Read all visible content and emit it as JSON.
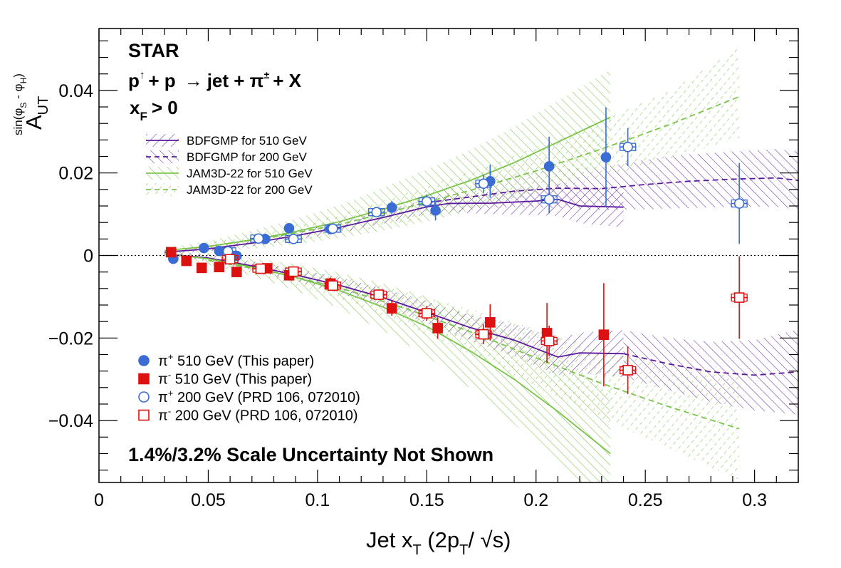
{
  "chart_data": {
    "type": "scatter",
    "title": "",
    "annotations": {
      "experiment": "STAR",
      "reaction": "p↑ + p → jet + π± + X",
      "reaction_parts": {
        "beam": "p",
        "up_arrow": "↑",
        "plus1": "+ p",
        "arrow": "→",
        "rest": "jet + π",
        "pm": "±",
        "tail": "+ X"
      },
      "kinematic_cut": "x_F > 0",
      "cut_parts": {
        "x": "x",
        "sub": "F",
        "rel": "> 0"
      },
      "scale_note": "1.4%/3.2% Scale Uncertainty Not Shown"
    },
    "xlabel": "Jet x_T (2p_T/√s)",
    "xlabel_parts": {
      "main": "Jet x",
      "sub1": "T",
      "mid": " (2p",
      "sub2": "T",
      "slash": "/ ",
      "sqrt": "√s",
      "close": ")"
    },
    "ylabel": "A_UT^sin(φ_S - φ_H)",
    "ylabel_parts": {
      "main": "A",
      "sub": "UT",
      "sup": "sin(φ",
      "sup_s": "S",
      "sup_mid": " - φ",
      "sup_h": "H",
      "sup_end": ")"
    },
    "xlim": [
      0,
      0.32
    ],
    "ylim": [
      -0.055,
      0.055
    ],
    "x_ticks": [
      {
        "value": 0,
        "label": "0"
      },
      {
        "value": 0.05,
        "label": "0.05"
      },
      {
        "value": 0.1,
        "label": "0.1"
      },
      {
        "value": 0.15,
        "label": "0.15"
      },
      {
        "value": 0.2,
        "label": "0.2"
      },
      {
        "value": 0.25,
        "label": "0.25"
      },
      {
        "value": 0.3,
        "label": "0.3"
      }
    ],
    "y_ticks": [
      {
        "value": -0.04,
        "label": "−0.04"
      },
      {
        "value": -0.02,
        "label": "−0.02"
      },
      {
        "value": 0,
        "label": "0"
      },
      {
        "value": 0.02,
        "label": "0.02"
      },
      {
        "value": 0.04,
        "label": "0.04"
      }
    ],
    "zero_line": true,
    "grid": false,
    "legend_top": {
      "placement": "upper-left",
      "entries": [
        {
          "label": "BDFGMP for 510 GeV",
          "color": "#5b1a9a",
          "style": "solid"
        },
        {
          "label": "BDFGMP for 200 GeV",
          "color": "#5b1a9a",
          "style": "dashed"
        },
        {
          "label": "JAM3D-22 for 510 GeV",
          "color": "#7cc44a",
          "style": "solid"
        },
        {
          "label": "JAM3D-22 for 200 GeV",
          "color": "#7cc44a",
          "style": "dashed"
        }
      ]
    },
    "legend_bottom": {
      "placement": "lower-left",
      "entries": [
        {
          "label": "π+ 510 GeV (This paper)",
          "parts": {
            "base": "π",
            "sup": "+",
            "rest": " 510 GeV (This paper)"
          },
          "marker": "circle-filled",
          "color": "#3a6cd4"
        },
        {
          "label": "π- 510 GeV (This paper)",
          "parts": {
            "base": "π",
            "sup": "-",
            "rest": " 510 GeV (This paper)"
          },
          "marker": "square-filled",
          "color": "#dd1111"
        },
        {
          "label": "π+ 200 GeV (PRD 106, 072010)",
          "parts": {
            "base": "π",
            "sup": "+",
            "rest": " 200 GeV (PRD 106, 072010)"
          },
          "marker": "circle-open",
          "color": "#3a6cd4"
        },
        {
          "label": "π- 200 GeV (PRD 106, 072010)",
          "parts": {
            "base": "π",
            "sup": "-",
            "rest": " 200 GeV (PRD 106, 072010)"
          },
          "marker": "square-open",
          "color": "#dd1111"
        }
      ]
    },
    "series": [
      {
        "name": "π+ 510 GeV (This paper)",
        "marker": "circle-filled",
        "color": "#3a6cd4",
        "points": [
          {
            "x": 0.034,
            "y": -0.0008,
            "err": 0.0008
          },
          {
            "x": 0.048,
            "y": 0.0018,
            "err": 0.0006
          },
          {
            "x": 0.055,
            "y": 0.0011,
            "err": 0.0007
          },
          {
            "x": 0.063,
            "y": -0.0001,
            "err": 0.0009
          },
          {
            "x": 0.076,
            "y": 0.004,
            "err": 0.001
          },
          {
            "x": 0.087,
            "y": 0.0066,
            "err": 0.0009
          },
          {
            "x": 0.106,
            "y": 0.0064,
            "err": 0.0011
          },
          {
            "x": 0.134,
            "y": 0.0116,
            "err": 0.0016
          },
          {
            "x": 0.154,
            "y": 0.0109,
            "err": 0.0024
          },
          {
            "x": 0.179,
            "y": 0.018,
            "err": 0.004
          },
          {
            "x": 0.206,
            "y": 0.0216,
            "err": 0.0072
          },
          {
            "x": 0.232,
            "y": 0.0238,
            "err": 0.0121
          }
        ]
      },
      {
        "name": "π- 510 GeV (This paper)",
        "marker": "square-filled",
        "color": "#dd1111",
        "points": [
          {
            "x": 0.033,
            "y": 0.0008,
            "err": 0.0008
          },
          {
            "x": 0.04,
            "y": -0.0013,
            "err": 0.0008
          },
          {
            "x": 0.047,
            "y": -0.003,
            "err": 0.0007
          },
          {
            "x": 0.055,
            "y": -0.0028,
            "err": 0.0009
          },
          {
            "x": 0.063,
            "y": -0.004,
            "err": 0.001
          },
          {
            "x": 0.077,
            "y": -0.0031,
            "err": 0.0009
          },
          {
            "x": 0.087,
            "y": -0.0048,
            "err": 0.0011
          },
          {
            "x": 0.106,
            "y": -0.0068,
            "err": 0.0014
          },
          {
            "x": 0.134,
            "y": -0.0128,
            "err": 0.0018
          },
          {
            "x": 0.155,
            "y": -0.0176,
            "err": 0.0026
          },
          {
            "x": 0.179,
            "y": -0.0162,
            "err": 0.0044
          },
          {
            "x": 0.205,
            "y": -0.0188,
            "err": 0.0073
          },
          {
            "x": 0.231,
            "y": -0.0192,
            "err": 0.0125
          }
        ]
      },
      {
        "name": "π+ 200 GeV (PRD 106, 072010)",
        "marker": "circle-open",
        "color": "#3a6cd4",
        "points": [
          {
            "x": 0.059,
            "y": 0.001,
            "err": 0.0007
          },
          {
            "x": 0.073,
            "y": 0.0041,
            "err": 0.0007
          },
          {
            "x": 0.089,
            "y": 0.004,
            "err": 0.0008
          },
          {
            "x": 0.107,
            "y": 0.0065,
            "err": 0.001
          },
          {
            "x": 0.127,
            "y": 0.0105,
            "err": 0.0012
          },
          {
            "x": 0.15,
            "y": 0.0131,
            "err": 0.0017
          },
          {
            "x": 0.176,
            "y": 0.0174,
            "err": 0.0022
          },
          {
            "x": 0.206,
            "y": 0.0136,
            "err": 0.0034
          },
          {
            "x": 0.242,
            "y": 0.0263,
            "err": 0.0046
          },
          {
            "x": 0.293,
            "y": 0.0126,
            "err": 0.0098
          }
        ]
      },
      {
        "name": "π- 200 GeV (PRD 106, 072010)",
        "marker": "square-open",
        "color": "#dd1111",
        "points": [
          {
            "x": 0.06,
            "y": -0.0009,
            "err": 0.0008
          },
          {
            "x": 0.074,
            "y": -0.0032,
            "err": 0.0008
          },
          {
            "x": 0.089,
            "y": -0.0039,
            "err": 0.0009
          },
          {
            "x": 0.107,
            "y": -0.0073,
            "err": 0.0011
          },
          {
            "x": 0.128,
            "y": -0.0095,
            "err": 0.0013
          },
          {
            "x": 0.15,
            "y": -0.014,
            "err": 0.0018
          },
          {
            "x": 0.176,
            "y": -0.0191,
            "err": 0.0024
          },
          {
            "x": 0.206,
            "y": -0.0207,
            "err": 0.0037
          },
          {
            "x": 0.242,
            "y": -0.0278,
            "err": 0.0058
          },
          {
            "x": 0.293,
            "y": -0.0102,
            "err": 0.01
          }
        ]
      }
    ],
    "theory": [
      {
        "name": "BDFGMP for 510 GeV",
        "color": "#5b1a9a",
        "style": "solid",
        "hatch": "purple-solid",
        "bands": [
          {
            "x": [
              0.03,
              0.05,
              0.07,
              0.09,
              0.11,
              0.13,
              0.15,
              0.16,
              0.18,
              0.2,
              0.21,
              0.22,
              0.24
            ],
            "y": [
              0.0008,
              0.0016,
              0.003,
              0.0048,
              0.0068,
              0.0092,
              0.0118,
              0.0126,
              0.0127,
              0.0132,
              0.0136,
              0.012,
              0.0117
            ],
            "lo": [
              0.0004,
              0.001,
              0.0022,
              0.0038,
              0.0055,
              0.0077,
              0.01,
              0.0105,
              0.01,
              0.0098,
              0.0096,
              0.0078,
              0.0068
            ],
            "hi": [
              0.0012,
              0.0022,
              0.0038,
              0.0058,
              0.0081,
              0.0107,
              0.0136,
              0.0147,
              0.0154,
              0.0166,
              0.0176,
              0.0162,
              0.0166
            ]
          },
          {
            "x": [
              0.03,
              0.05,
              0.07,
              0.09,
              0.11,
              0.13,
              0.15,
              0.17,
              0.19,
              0.21,
              0.22,
              0.24
            ],
            "y": [
              0.0004,
              -0.0006,
              -0.0025,
              -0.0047,
              -0.0072,
              -0.0102,
              -0.0138,
              -0.0175,
              -0.0205,
              -0.0246,
              -0.0236,
              -0.0238
            ],
            "lo": [
              -0.0001,
              -0.0014,
              -0.0036,
              -0.0062,
              -0.0091,
              -0.0124,
              -0.0165,
              -0.0206,
              -0.0244,
              -0.029,
              -0.0285,
              -0.0295
            ],
            "hi": [
              0.0009,
              0.0002,
              -0.0014,
              -0.0032,
              -0.0053,
              -0.008,
              -0.0111,
              -0.0144,
              -0.0166,
              -0.0202,
              -0.0187,
              -0.0181
            ]
          }
        ]
      },
      {
        "name": "BDFGMP for 200 GeV",
        "color": "#5b1a9a",
        "style": "dashed",
        "hatch": "purple-dashed",
        "bands": [
          {
            "x": [
              0.15,
              0.17,
              0.19,
              0.21,
              0.23,
              0.25,
              0.27,
              0.29,
              0.31,
              0.32
            ],
            "y": [
              0.0128,
              0.0142,
              0.0156,
              0.0163,
              0.0162,
              0.0172,
              0.018,
              0.0185,
              0.0188,
              0.0182
            ],
            "lo": [
              0.0105,
              0.0112,
              0.0118,
              0.0115,
              0.011,
              0.0112,
              0.0115,
              0.0118,
              0.0118,
              0.0112
            ],
            "hi": [
              0.0151,
              0.0172,
              0.0194,
              0.0211,
              0.0214,
              0.0232,
              0.0245,
              0.0252,
              0.0258,
              0.0252
            ]
          },
          {
            "x": [
              0.24,
              0.26,
              0.28,
              0.3,
              0.32
            ],
            "y": [
              -0.0238,
              -0.0262,
              -0.0282,
              -0.029,
              -0.0282
            ],
            "lo": [
              -0.0295,
              -0.0325,
              -0.0355,
              -0.0375,
              -0.0385
            ],
            "hi": [
              -0.0181,
              -0.0199,
              -0.0209,
              -0.0205,
              -0.0179
            ]
          }
        ]
      },
      {
        "name": "JAM3D-22 for 510 GeV",
        "color": "#7cc44a",
        "style": "solid",
        "hatch": "green-solid",
        "bands": [
          {
            "x": [
              0.03,
              0.05,
              0.07,
              0.09,
              0.11,
              0.13,
              0.15,
              0.17,
              0.19,
              0.21,
              0.234
            ],
            "y": [
              0.0012,
              0.0022,
              0.0038,
              0.0058,
              0.0082,
              0.0112,
              0.0145,
              0.0182,
              0.0225,
              0.0275,
              0.0335
            ],
            "lo": [
              0.0005,
              0.0009,
              0.0016,
              0.0027,
              0.0042,
              0.006,
              0.0082,
              0.0108,
              0.0138,
              0.0175,
              0.022
            ],
            "hi": [
              0.0019,
              0.0035,
              0.006,
              0.0089,
              0.0122,
              0.0164,
              0.0208,
              0.0256,
              0.0312,
              0.0375,
              0.045
            ]
          },
          {
            "x": [
              0.03,
              0.05,
              0.07,
              0.09,
              0.11,
              0.13,
              0.15,
              0.17,
              0.19,
              0.21,
              0.234
            ],
            "y": [
              0.0004,
              -0.0008,
              -0.0028,
              -0.0053,
              -0.0085,
              -0.0125,
              -0.0172,
              -0.0232,
              -0.03,
              -0.0378,
              -0.048
            ],
            "lo": [
              -0.0002,
              -0.0022,
              -0.005,
              -0.0085,
              -0.0128,
              -0.0182,
              -0.0244,
              -0.0322,
              -0.0408,
              -0.0505,
              -0.063
            ],
            "hi": [
              0.001,
              0.0006,
              -0.0006,
              -0.0021,
              -0.0042,
              -0.0068,
              -0.01,
              -0.0142,
              -0.0192,
              -0.0251,
              -0.033
            ]
          }
        ]
      },
      {
        "name": "JAM3D-22 for 200 GeV",
        "color": "#7cc44a",
        "style": "dashed",
        "hatch": "green-dashed",
        "bands": [
          {
            "x": [
              0.05,
              0.08,
              0.11,
              0.14,
              0.17,
              0.2,
              0.23,
              0.26,
              0.293
            ],
            "y": [
              0.0022,
              0.0045,
              0.0075,
              0.0115,
              0.0158,
              0.0205,
              0.0258,
              0.0315,
              0.0385
            ],
            "lo": [
              0.0012,
              0.0028,
              0.005,
              0.008,
              0.0112,
              0.0148,
              0.0188,
              0.0232,
              0.0285
            ],
            "hi": [
              0.0032,
              0.0062,
              0.01,
              0.015,
              0.0204,
              0.0262,
              0.0328,
              0.0398,
              0.0505
            ]
          },
          {
            "x": [
              0.05,
              0.08,
              0.11,
              0.14,
              0.17,
              0.2,
              0.23,
              0.26,
              0.293
            ],
            "y": [
              -0.0012,
              -0.004,
              -0.0078,
              -0.0128,
              -0.0185,
              -0.0248,
              -0.031,
              -0.0365,
              -0.042
            ],
            "lo": [
              -0.0022,
              -0.0058,
              -0.0105,
              -0.0168,
              -0.024,
              -0.0318,
              -0.0395,
              -0.0465,
              -0.0545
            ],
            "hi": [
              -0.0002,
              -0.0022,
              -0.0051,
              -0.0088,
              -0.013,
              -0.0178,
              -0.0225,
              -0.0265,
              -0.0295
            ]
          }
        ]
      }
    ]
  }
}
